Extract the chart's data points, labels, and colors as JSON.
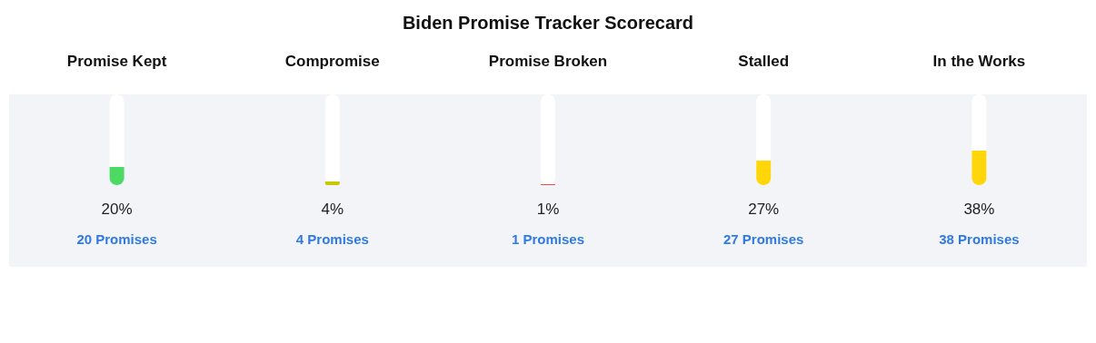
{
  "chart_data": {
    "type": "bar",
    "title": "Biden Promise Tracker Scorecard",
    "categories": [
      "Promise Kept",
      "Compromise",
      "Promise Broken",
      "Stalled",
      "In the Works"
    ],
    "values": [
      20,
      4,
      1,
      27,
      38
    ],
    "colors": [
      "#4cd964",
      "#c8c800",
      "#e74c3c",
      "#ffd60a",
      "#ffd60a"
    ],
    "ylim": [
      0,
      100
    ],
    "value_labels": [
      "20%",
      "4%",
      "1%",
      "27%",
      "38%"
    ],
    "annotations": [
      "20 Promises",
      "4 Promises",
      "1 Promises",
      "27 Promises",
      "38 Promises"
    ],
    "tick_labels": "x"
  }
}
